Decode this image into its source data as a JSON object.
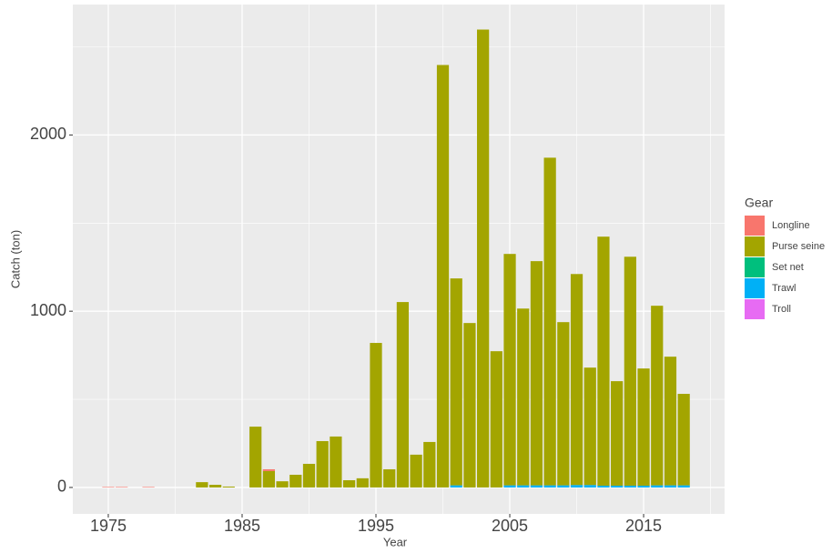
{
  "chart_data": {
    "type": "bar",
    "stacked": true,
    "x_label": "Year",
    "y_label": "Catch (ton)",
    "legend_title": "Gear",
    "x": [
      1975,
      1976,
      1977,
      1978,
      1979,
      1980,
      1981,
      1982,
      1983,
      1984,
      1985,
      1986,
      1987,
      1988,
      1989,
      1990,
      1991,
      1992,
      1993,
      1994,
      1995,
      1996,
      1997,
      1998,
      1999,
      2000,
      2001,
      2002,
      2003,
      2004,
      2005,
      2006,
      2007,
      2008,
      2009,
      2010,
      2011,
      2012,
      2013,
      2014,
      2015,
      2016,
      2017,
      2018
    ],
    "series": [
      {
        "name": "Longline",
        "color": "#F8766D",
        "values": [
          3,
          3,
          null,
          3,
          null,
          null,
          null,
          null,
          null,
          null,
          null,
          null,
          10,
          null,
          null,
          null,
          null,
          null,
          null,
          null,
          null,
          null,
          null,
          null,
          null,
          null,
          null,
          null,
          null,
          null,
          null,
          null,
          null,
          null,
          null,
          null,
          null,
          null,
          null,
          null,
          null,
          null,
          null,
          null
        ]
      },
      {
        "name": "Purse seine",
        "color": "#A3A500",
        "values": [
          null,
          null,
          null,
          null,
          null,
          null,
          null,
          30,
          15,
          5,
          null,
          345,
          93,
          35,
          72,
          134,
          263,
          289,
          41,
          52,
          820,
          103,
          1052,
          186,
          258,
          2397,
          1174,
          933,
          2598,
          773,
          1313,
          1003,
          1272,
          1859,
          926,
          1197,
          666,
          1413,
          593,
          1299,
          665,
          1019,
          730,
          519
        ]
      },
      {
        "name": "Set net",
        "color": "#00BF7D",
        "values": [
          null,
          null,
          null,
          null,
          null,
          null,
          null,
          null,
          null,
          null,
          null,
          null,
          null,
          null,
          null,
          null,
          null,
          null,
          null,
          null,
          null,
          null,
          null,
          null,
          null,
          null,
          null,
          null,
          null,
          null,
          null,
          null,
          null,
          null,
          null,
          null,
          null,
          null,
          null,
          null,
          null,
          null,
          null,
          null
        ]
      },
      {
        "name": "Trawl",
        "color": "#00B0F6",
        "values": [
          null,
          null,
          null,
          null,
          null,
          null,
          null,
          null,
          null,
          null,
          null,
          null,
          null,
          null,
          null,
          null,
          null,
          null,
          null,
          null,
          null,
          null,
          null,
          null,
          null,
          null,
          12,
          null,
          null,
          null,
          12,
          12,
          12,
          12,
          12,
          14,
          14,
          10,
          10,
          10,
          10,
          12,
          12,
          12
        ]
      },
      {
        "name": "Troll",
        "color": "#E76BF3",
        "values": [
          null,
          null,
          null,
          null,
          null,
          null,
          null,
          null,
          null,
          null,
          null,
          null,
          null,
          null,
          null,
          null,
          null,
          null,
          null,
          null,
          null,
          null,
          null,
          null,
          null,
          null,
          null,
          null,
          null,
          null,
          null,
          null,
          null,
          null,
          null,
          null,
          null,
          null,
          null,
          null,
          null,
          null,
          null,
          null
        ]
      }
    ],
    "xlim": [
      1972.35,
      2021.05
    ],
    "xticks": [
      1975,
      1985,
      1995,
      2005,
      2015
    ],
    "ylim": [
      -150,
      2740
    ],
    "yticks": [
      0,
      1000,
      2000
    ],
    "grid": true,
    "legend_position": "right"
  }
}
